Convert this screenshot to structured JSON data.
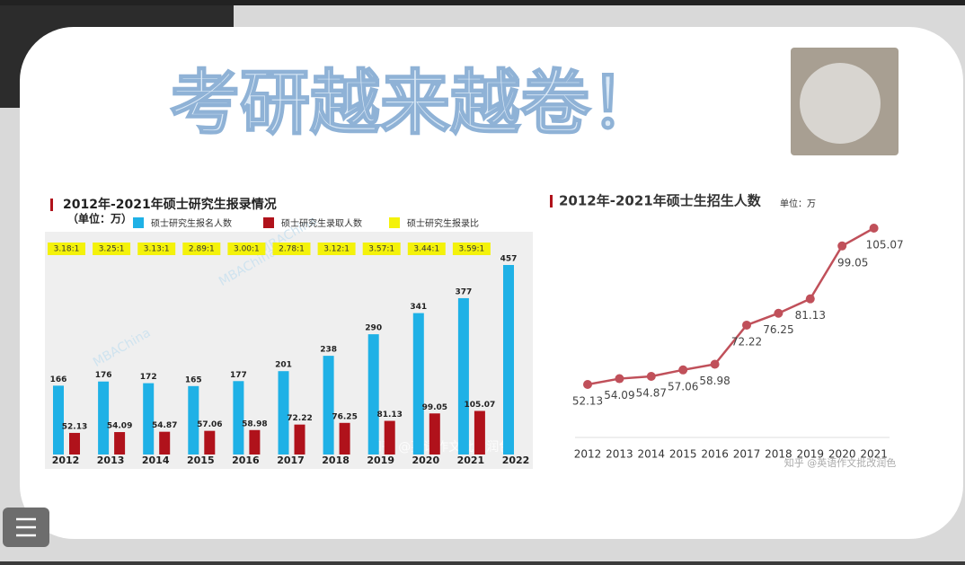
{
  "slide_title": "考研越来越卷！",
  "watermark": "知乎 @英语作文批改润色",
  "chart_data": [
    {
      "type": "bar",
      "title": "2012年-2021年硕士研究生报录情况",
      "subtitle": "（单位：万）",
      "watermark": "MBAChina",
      "categories": [
        "2012",
        "2013",
        "2014",
        "2015",
        "2016",
        "2017",
        "2018",
        "2019",
        "2020",
        "2021",
        "2022"
      ],
      "series": [
        {
          "name": "硕士研究生报名人数",
          "color": "#1fb1e6",
          "values": [
            166,
            176,
            172,
            165,
            177,
            201,
            238,
            290,
            341,
            377,
            457
          ]
        },
        {
          "name": "硕士研究生录取人数",
          "color": "#b0121b",
          "values": [
            52.13,
            54.09,
            54.87,
            57.06,
            58.98,
            72.22,
            76.25,
            81.13,
            99.05,
            105.07,
            null
          ]
        },
        {
          "name": "硕士研究生报录比",
          "color": "#f4f20a",
          "values": [
            3.18,
            3.25,
            3.13,
            2.89,
            3.0,
            2.78,
            3.12,
            3.57,
            3.44,
            3.59,
            null
          ],
          "value_labels": [
            "3.18:1",
            "3.25:1",
            "3.13:1",
            "2.89:1",
            "3.00:1",
            "2.78:1",
            "3.12:1",
            "3.57:1",
            "3.44:1",
            "3.59:1",
            null
          ]
        }
      ]
    },
    {
      "type": "line",
      "title": "2012年-2021年硕士生招生人数",
      "subtitle": "单位：万",
      "color": "#c0505a",
      "categories": [
        "2012",
        "2013",
        "2014",
        "2015",
        "2016",
        "2017",
        "2018",
        "2019",
        "2020",
        "2021"
      ],
      "values": [
        52.13,
        54.09,
        54.87,
        57.06,
        58.98,
        72.22,
        76.25,
        81.13,
        99.05,
        105.07
      ]
    }
  ]
}
